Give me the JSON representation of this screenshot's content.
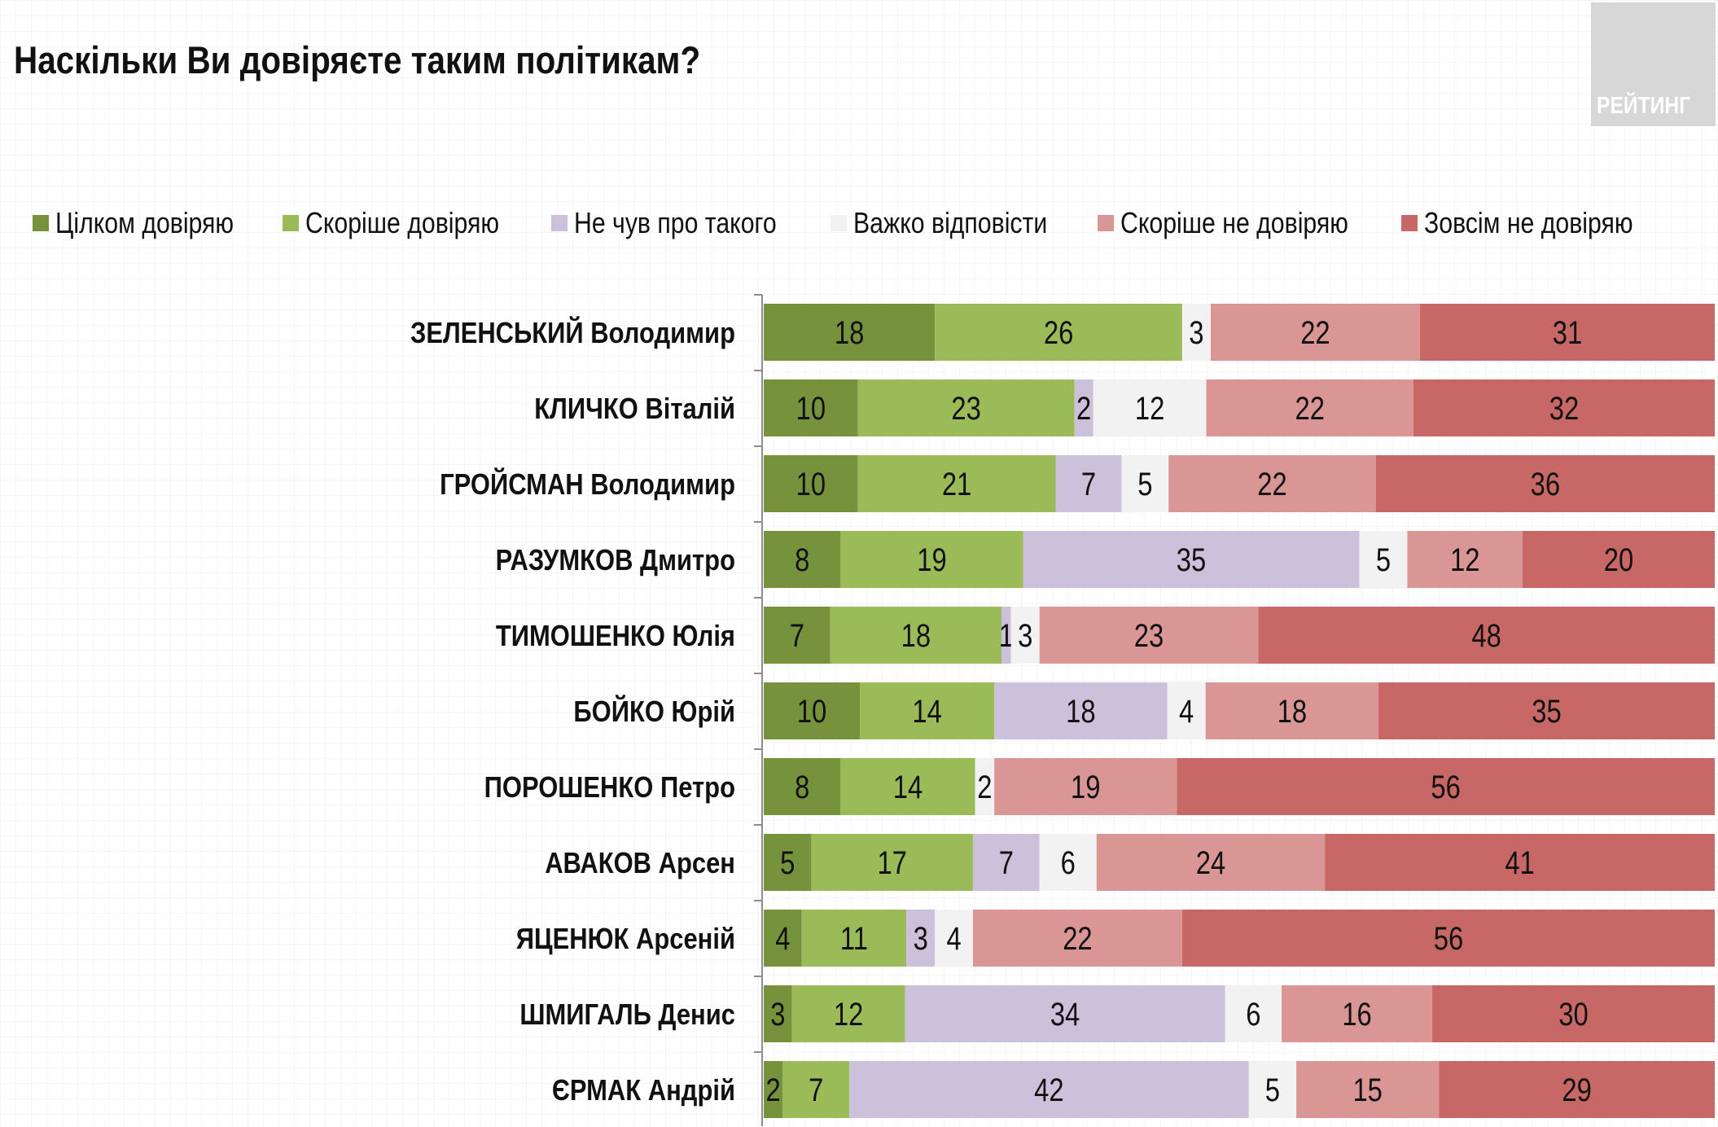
{
  "header": {
    "title": "Наскільки Ви довіряєте таким політикам?",
    "logo_text": "РЕЙТИНГ"
  },
  "chart_data": {
    "type": "bar",
    "orientation": "horizontal",
    "stacked": true,
    "title": "Наскільки Ви довіряєте таким політикам?",
    "xlabel": "",
    "ylabel": "",
    "legend_position": "top",
    "grid": false,
    "categories": [
      "ЗЕЛЕНСЬКИЙ Володимир",
      "КЛИЧКО Віталій",
      "ГРОЙСМАН Володимир",
      "РАЗУМКОВ Дмитро",
      "ТИМОШЕНКО Юлія",
      "БОЙКО Юрій",
      "ПОРОШЕНКО Петро",
      "АВАКОВ Арсен",
      "ЯЦЕНЮК Арсеній",
      "ШМИГАЛЬ Денис",
      "ЄРМАК Андрій"
    ],
    "series": [
      {
        "name": "Цілком довіряю",
        "color": "#76923c",
        "values": [
          18,
          10,
          10,
          8,
          7,
          10,
          8,
          5,
          4,
          3,
          2
        ]
      },
      {
        "name": "Скоріше довіряю",
        "color": "#9bbb59",
        "values": [
          26,
          23,
          21,
          19,
          18,
          14,
          14,
          17,
          11,
          12,
          7
        ]
      },
      {
        "name": "Не чув про такого",
        "color": "#ccc1da",
        "values": [
          0,
          2,
          7,
          35,
          1,
          18,
          0,
          7,
          3,
          34,
          42
        ]
      },
      {
        "name": "Важко відповісти",
        "color": "#f2f2f2",
        "values": [
          3,
          12,
          5,
          5,
          3,
          4,
          2,
          6,
          4,
          6,
          5
        ]
      },
      {
        "name": "Скоріше не довіряю",
        "color": "#d99694",
        "values": [
          22,
          22,
          22,
          12,
          23,
          18,
          19,
          24,
          22,
          16,
          15
        ]
      },
      {
        "name": "Зовсім не довіряю",
        "color": "#c86866",
        "values": [
          31,
          32,
          36,
          20,
          48,
          35,
          56,
          41,
          56,
          30,
          29
        ]
      }
    ],
    "segment_labels": [
      [
        "18",
        "26",
        "",
        "3",
        "22",
        "31"
      ],
      [
        "10",
        "23",
        "2",
        "12",
        "22",
        "32"
      ],
      [
        "10",
        "21",
        "7",
        "5",
        "22",
        "36"
      ],
      [
        "8",
        "19",
        "35",
        "5",
        "12",
        "20"
      ],
      [
        "7",
        "18",
        "1",
        "3",
        "23",
        "48"
      ],
      [
        "10",
        "14",
        "18",
        "4",
        "18",
        "35"
      ],
      [
        "8",
        "14",
        "",
        "2",
        "19",
        "56"
      ],
      [
        "5",
        "17",
        "7",
        "6",
        "24",
        "41"
      ],
      [
        "4",
        "11",
        "3",
        "4",
        "22",
        "56"
      ],
      [
        "3",
        "12",
        "34",
        "6",
        "16",
        "30"
      ],
      [
        "2",
        "7",
        "42",
        "5",
        "15",
        "29"
      ]
    ]
  }
}
